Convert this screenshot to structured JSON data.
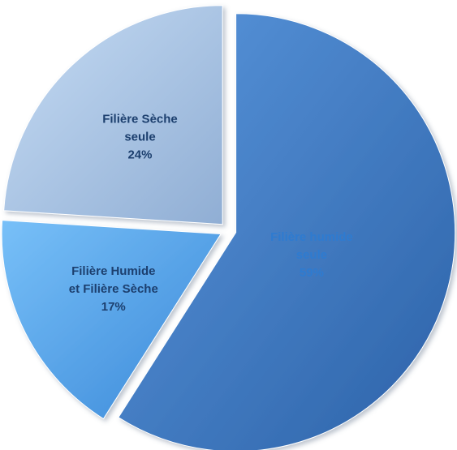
{
  "chart_data": {
    "type": "pie",
    "slices": [
      {
        "label_lines": [
          "Filière humide",
          "seule"
        ],
        "percent_text": "59%",
        "value": 59,
        "color": "#3a78c4"
      },
      {
        "label_lines": [
          "Filière Humide",
          "et Filière Sèche"
        ],
        "percent_text": "17%",
        "value": 17,
        "color": "#58a8ee"
      },
      {
        "label_lines": [
          "Filière Sèche",
          "seule"
        ],
        "percent_text": "24%",
        "value": 24,
        "color": "#a3bfe0"
      }
    ],
    "exploded": true,
    "label_colors": [
      "#2e7bd0",
      "#1c3f6e",
      "#1c3f6e"
    ]
  }
}
